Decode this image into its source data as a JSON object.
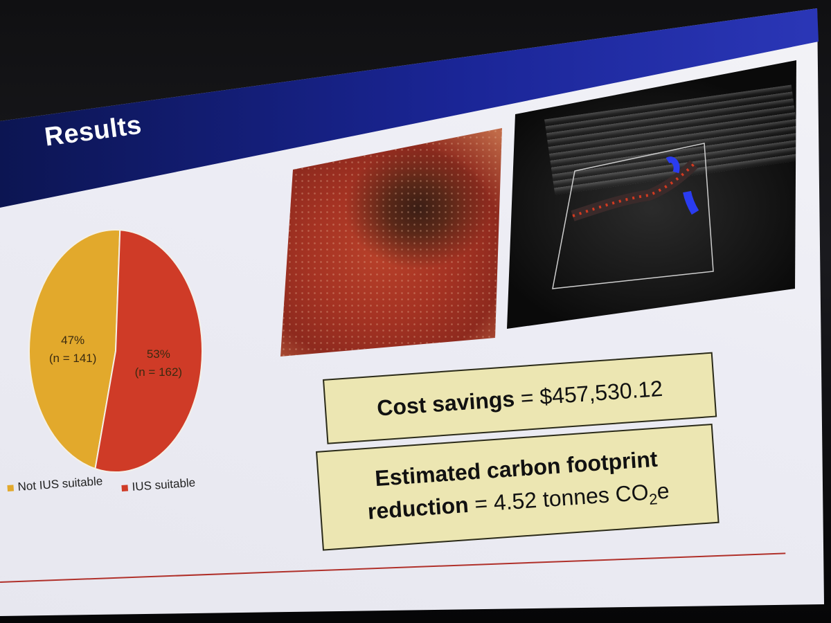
{
  "slide": {
    "title": "Results",
    "cost_savings": {
      "label": "Cost savings",
      "operator": " = ",
      "value": "$457,530.12"
    },
    "carbon": {
      "line1": "Estimated carbon footprint",
      "line2_bold": "reduction",
      "line2_rest": " = 4.52 tonnes CO",
      "subscript": "2",
      "suffix": "e"
    },
    "images": [
      {
        "name": "endoscopy-photo",
        "kind": "photo"
      },
      {
        "name": "intestinal-ultrasound-image",
        "kind": "photo"
      }
    ],
    "colors": {
      "banner": "#1a2596",
      "not_suitable": "#e2a92c",
      "suitable": "#cf3b27",
      "box_fill": "#ece6b2",
      "rule": "#b0302a"
    }
  },
  "chart_data": {
    "type": "pie",
    "title": "",
    "categories": [
      "Not IUS suitable",
      "IUS suitable"
    ],
    "values": [
      47,
      53
    ],
    "counts": [
      141,
      162
    ],
    "slice_labels": [
      {
        "pct": "47%",
        "n": "(n = 141)"
      },
      {
        "pct": "53%",
        "n": "(n = 162)"
      }
    ],
    "colors": [
      "#e2a92c",
      "#cf3b27"
    ],
    "legend": {
      "position": "bottom",
      "entries": [
        "Not IUS suitable",
        "IUS suitable"
      ]
    }
  }
}
